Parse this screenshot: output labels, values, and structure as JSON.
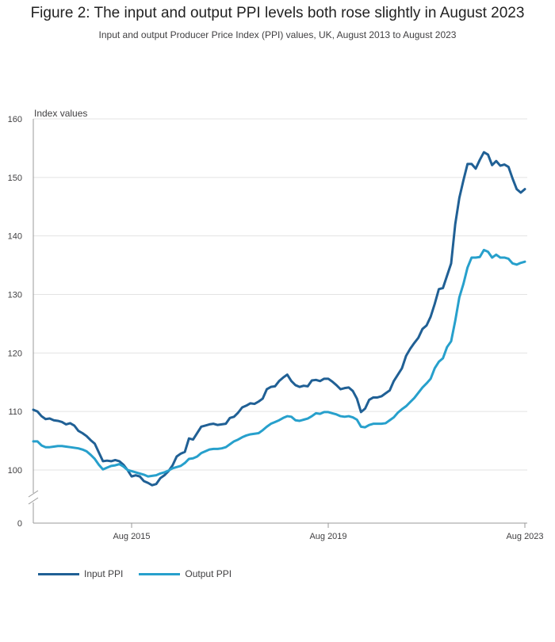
{
  "title": "Figure 2: The input and output PPI levels both rose slightly in August 2023",
  "subtitle": "Input and output Producer Price Index (PPI) values, UK, August 2013 to August 2023",
  "chart_data": {
    "type": "line",
    "ylabel": "Index values",
    "yticks": [
      0,
      100,
      110,
      120,
      130,
      140,
      150,
      160
    ],
    "ylim_broken": [
      100,
      160
    ],
    "axis_break": true,
    "xticks": [
      "Aug 2015",
      "Aug 2019",
      "Aug 2023"
    ],
    "start_month": "Aug 2013",
    "end_month": "Aug 2023",
    "grid": true,
    "legend_position": "bottom-left",
    "series": [
      {
        "name": "Input PPI",
        "color": "#206095",
        "values": [
          110.3,
          110.0,
          109.2,
          108.7,
          108.8,
          108.5,
          108.4,
          108.2,
          107.8,
          108.0,
          107.6,
          106.7,
          106.3,
          105.8,
          105.1,
          104.5,
          103.0,
          101.5,
          101.6,
          101.5,
          101.7,
          101.5,
          100.9,
          100.0,
          98.9,
          99.1,
          98.9,
          98.1,
          97.8,
          97.4,
          97.6,
          98.6,
          99.1,
          99.8,
          100.8,
          102.3,
          102.8,
          103.1,
          105.4,
          105.2,
          106.3,
          107.4,
          107.6,
          107.8,
          107.9,
          107.7,
          107.8,
          107.9,
          108.9,
          109.1,
          109.8,
          110.7,
          111.0,
          111.4,
          111.3,
          111.7,
          112.2,
          113.8,
          114.2,
          114.3,
          115.2,
          115.8,
          116.3,
          115.2,
          114.5,
          114.2,
          114.4,
          114.3,
          115.3,
          115.4,
          115.2,
          115.6,
          115.6,
          115.1,
          114.5,
          113.8,
          114.0,
          114.1,
          113.5,
          112.2,
          109.9,
          110.5,
          112.0,
          112.4,
          112.4,
          112.6,
          113.1,
          113.6,
          115.2,
          116.3,
          117.4,
          119.5,
          120.7,
          121.7,
          122.6,
          124.1,
          124.7,
          126.2,
          128.4,
          130.9,
          131.1,
          133.2,
          135.3,
          142.0,
          146.5,
          149.5,
          152.3,
          152.3,
          151.5,
          153.0,
          154.3,
          153.9,
          152.1,
          152.8,
          152.0,
          152.2,
          151.8,
          149.8,
          148.0,
          147.4,
          148.0
        ]
      },
      {
        "name": "Output PPI",
        "color": "#27A0CC",
        "values": [
          104.9,
          104.9,
          104.2,
          103.9,
          103.9,
          104.0,
          104.1,
          104.1,
          104.0,
          103.9,
          103.8,
          103.7,
          103.5,
          103.2,
          102.6,
          101.9,
          100.9,
          100.1,
          100.4,
          100.7,
          100.8,
          101.0,
          100.6,
          100.0,
          99.8,
          99.6,
          99.4,
          99.2,
          98.9,
          99.0,
          99.1,
          99.4,
          99.6,
          99.9,
          100.3,
          100.5,
          100.7,
          101.2,
          101.9,
          102.0,
          102.3,
          102.9,
          103.2,
          103.5,
          103.6,
          103.6,
          103.7,
          103.9,
          104.4,
          104.9,
          105.2,
          105.6,
          105.9,
          106.1,
          106.2,
          106.3,
          106.8,
          107.4,
          107.9,
          108.2,
          108.5,
          108.9,
          109.2,
          109.1,
          108.5,
          108.4,
          108.6,
          108.8,
          109.2,
          109.7,
          109.6,
          109.9,
          109.9,
          109.7,
          109.5,
          109.2,
          109.1,
          109.2,
          109.0,
          108.6,
          107.4,
          107.3,
          107.7,
          107.9,
          107.9,
          107.9,
          108.0,
          108.5,
          109.0,
          109.8,
          110.4,
          110.9,
          111.6,
          112.3,
          113.2,
          114.1,
          114.8,
          115.6,
          117.4,
          118.5,
          119.1,
          121.0,
          122.0,
          125.5,
          129.5,
          131.8,
          134.6,
          136.3,
          136.3,
          136.4,
          137.6,
          137.3,
          136.3,
          136.8,
          136.3,
          136.3,
          136.1,
          135.3,
          135.1,
          135.4,
          135.6
        ]
      }
    ]
  }
}
